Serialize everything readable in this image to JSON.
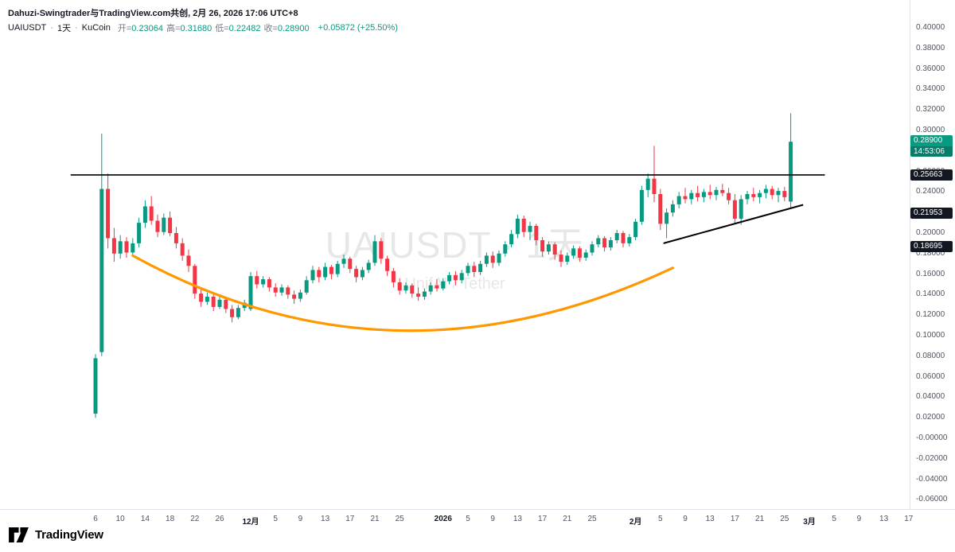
{
  "attribution": "Dahuzi-Swingtrader与TradingView.com共创, 2月 26, 2026 17:06 UTC+8",
  "header": {
    "symbol": "UAIUSDT",
    "separator": "·",
    "interval": "1天",
    "exchange": "KuCoin",
    "ohlc": [
      {
        "label": "开",
        "value": "0.23064"
      },
      {
        "label": "高",
        "value": "0.31680"
      },
      {
        "label": "低",
        "value": "0.22482"
      },
      {
        "label": "收",
        "value": "0.28900"
      }
    ],
    "change": "+0.05872 (+25.50%)"
  },
  "watermark": {
    "line1": "UAIUSDT · 1天",
    "line2": "UnifAI / Tether"
  },
  "colors": {
    "up": "#089981",
    "down": "#f23645",
    "level_line": "#000000",
    "curve": "#ff9800",
    "badge_dark": "#131722",
    "current_badge": "#089981"
  },
  "price_axis": {
    "labels": [
      "0.40000",
      "0.38000",
      "0.36000",
      "0.34000",
      "0.32000",
      "0.30000",
      "0.28000",
      "0.26000",
      "0.24000",
      "0.22000",
      "0.20000",
      "0.18000",
      "0.16000",
      "0.14000",
      "0.12000",
      "0.10000",
      "0.08000",
      "0.06000",
      "0.04000",
      "0.02000",
      "-0.00000",
      "-0.02000",
      "-0.04000",
      "-0.06000"
    ]
  },
  "badges": [
    {
      "text": "0.28900",
      "sub": "14:53:06",
      "price": 0.289,
      "type": "current"
    },
    {
      "text": "0.25663",
      "price": 0.25663,
      "type": "level"
    },
    {
      "text": "0.21953",
      "price": 0.21953,
      "type": "level"
    },
    {
      "text": "0.18695",
      "price": 0.18695,
      "type": "level"
    }
  ],
  "time_axis": [
    {
      "label": "6",
      "day": 0
    },
    {
      "label": "10",
      "day": 4
    },
    {
      "label": "14",
      "day": 8
    },
    {
      "label": "18",
      "day": 12
    },
    {
      "label": "22",
      "day": 16
    },
    {
      "label": "26",
      "day": 20
    },
    {
      "label": "12月",
      "day": 25,
      "bold": true
    },
    {
      "label": "5",
      "day": 29
    },
    {
      "label": "9",
      "day": 33
    },
    {
      "label": "13",
      "day": 37
    },
    {
      "label": "17",
      "day": 41
    },
    {
      "label": "21",
      "day": 45
    },
    {
      "label": "25",
      "day": 49
    },
    {
      "label": "2026",
      "day": 56,
      "bold": true
    },
    {
      "label": "5",
      "day": 60
    },
    {
      "label": "9",
      "day": 64
    },
    {
      "label": "13",
      "day": 68
    },
    {
      "label": "17",
      "day": 72
    },
    {
      "label": "21",
      "day": 76
    },
    {
      "label": "25",
      "day": 80
    },
    {
      "label": "2月",
      "day": 87,
      "bold": true
    },
    {
      "label": "5",
      "day": 91
    },
    {
      "label": "9",
      "day": 95
    },
    {
      "label": "13",
      "day": 99
    },
    {
      "label": "17",
      "day": 103
    },
    {
      "label": "21",
      "day": 107
    },
    {
      "label": "25",
      "day": 111
    },
    {
      "label": "3月",
      "day": 115,
      "bold": true
    },
    {
      "label": "5",
      "day": 119
    },
    {
      "label": "9",
      "day": 123
    },
    {
      "label": "13",
      "day": 127
    },
    {
      "label": "17",
      "day": 131
    }
  ],
  "logo": {
    "text": "TradingView"
  },
  "chart_data": {
    "type": "candlestick",
    "title": "UAIUSDT 1D KuCoin",
    "symbol": "UAIUSDT",
    "interval": "1D",
    "exchange": "KuCoin",
    "start_date": "2025-11-06",
    "end_date": "2026-02-26",
    "visible_price_range": [
      -0.065,
      0.405
    ],
    "grid": false,
    "last_candle": {
      "open": 0.23064,
      "high": 0.3168,
      "low": 0.22482,
      "close": 0.289,
      "change": "+0.05872 (+25.50%)"
    },
    "ohlc": [
      [
        0.024,
        0.082,
        0.02,
        0.078
      ],
      [
        0.084,
        0.297,
        0.08,
        0.243
      ],
      [
        0.243,
        0.258,
        0.185,
        0.195
      ],
      [
        0.195,
        0.205,
        0.172,
        0.18
      ],
      [
        0.18,
        0.198,
        0.175,
        0.192
      ],
      [
        0.192,
        0.196,
        0.176,
        0.181
      ],
      [
        0.181,
        0.195,
        0.178,
        0.19
      ],
      [
        0.19,
        0.215,
        0.186,
        0.21
      ],
      [
        0.21,
        0.232,
        0.205,
        0.226
      ],
      [
        0.226,
        0.236,
        0.208,
        0.212
      ],
      [
        0.212,
        0.218,
        0.196,
        0.201
      ],
      [
        0.201,
        0.219,
        0.198,
        0.215
      ],
      [
        0.215,
        0.221,
        0.197,
        0.2
      ],
      [
        0.2,
        0.206,
        0.185,
        0.19
      ],
      [
        0.19,
        0.195,
        0.173,
        0.178
      ],
      [
        0.178,
        0.184,
        0.162,
        0.168
      ],
      [
        0.168,
        0.17,
        0.136,
        0.141
      ],
      [
        0.141,
        0.146,
        0.128,
        0.133
      ],
      [
        0.133,
        0.142,
        0.13,
        0.138
      ],
      [
        0.138,
        0.14,
        0.124,
        0.128
      ],
      [
        0.128,
        0.138,
        0.126,
        0.135
      ],
      [
        0.135,
        0.137,
        0.122,
        0.126
      ],
      [
        0.126,
        0.13,
        0.113,
        0.118
      ],
      [
        0.118,
        0.13,
        0.116,
        0.127
      ],
      [
        0.127,
        0.135,
        0.124,
        0.132
      ],
      [
        0.126,
        0.162,
        0.124,
        0.158
      ],
      [
        0.158,
        0.163,
        0.146,
        0.15
      ],
      [
        0.15,
        0.158,
        0.147,
        0.155
      ],
      [
        0.155,
        0.157,
        0.143,
        0.147
      ],
      [
        0.147,
        0.151,
        0.138,
        0.142
      ],
      [
        0.142,
        0.15,
        0.139,
        0.147
      ],
      [
        0.147,
        0.149,
        0.136,
        0.14
      ],
      [
        0.14,
        0.144,
        0.131,
        0.136
      ],
      [
        0.136,
        0.145,
        0.133,
        0.142
      ],
      [
        0.142,
        0.158,
        0.14,
        0.154
      ],
      [
        0.154,
        0.168,
        0.151,
        0.164
      ],
      [
        0.164,
        0.167,
        0.152,
        0.157
      ],
      [
        0.157,
        0.171,
        0.154,
        0.167
      ],
      [
        0.167,
        0.169,
        0.155,
        0.16
      ],
      [
        0.16,
        0.173,
        0.157,
        0.17
      ],
      [
        0.17,
        0.179,
        0.166,
        0.175
      ],
      [
        0.175,
        0.177,
        0.161,
        0.165
      ],
      [
        0.165,
        0.168,
        0.152,
        0.157
      ],
      [
        0.157,
        0.167,
        0.154,
        0.164
      ],
      [
        0.164,
        0.174,
        0.161,
        0.171
      ],
      [
        0.171,
        0.198,
        0.168,
        0.192
      ],
      [
        0.192,
        0.195,
        0.17,
        0.175
      ],
      [
        0.175,
        0.178,
        0.158,
        0.163
      ],
      [
        0.163,
        0.166,
        0.147,
        0.152
      ],
      [
        0.152,
        0.156,
        0.14,
        0.144
      ],
      [
        0.144,
        0.152,
        0.141,
        0.149
      ],
      [
        0.149,
        0.151,
        0.137,
        0.141
      ],
      [
        0.141,
        0.147,
        0.134,
        0.138
      ],
      [
        0.138,
        0.146,
        0.135,
        0.143
      ],
      [
        0.143,
        0.152,
        0.14,
        0.149
      ],
      [
        0.149,
        0.155,
        0.143,
        0.146
      ],
      [
        0.146,
        0.156,
        0.144,
        0.153
      ],
      [
        0.153,
        0.162,
        0.15,
        0.159
      ],
      [
        0.159,
        0.163,
        0.149,
        0.154
      ],
      [
        0.154,
        0.164,
        0.151,
        0.161
      ],
      [
        0.161,
        0.171,
        0.158,
        0.168
      ],
      [
        0.168,
        0.172,
        0.157,
        0.162
      ],
      [
        0.162,
        0.173,
        0.159,
        0.17
      ],
      [
        0.17,
        0.181,
        0.167,
        0.178
      ],
      [
        0.178,
        0.182,
        0.166,
        0.171
      ],
      [
        0.171,
        0.183,
        0.168,
        0.18
      ],
      [
        0.18,
        0.192,
        0.177,
        0.189
      ],
      [
        0.189,
        0.203,
        0.186,
        0.199
      ],
      [
        0.199,
        0.218,
        0.195,
        0.214
      ],
      [
        0.214,
        0.217,
        0.196,
        0.201
      ],
      [
        0.201,
        0.211,
        0.193,
        0.207
      ],
      [
        0.207,
        0.209,
        0.188,
        0.193
      ],
      [
        0.193,
        0.196,
        0.177,
        0.182
      ],
      [
        0.182,
        0.192,
        0.179,
        0.189
      ],
      [
        0.189,
        0.191,
        0.174,
        0.179
      ],
      [
        0.179,
        0.183,
        0.167,
        0.172
      ],
      [
        0.172,
        0.181,
        0.169,
        0.178
      ],
      [
        0.178,
        0.188,
        0.175,
        0.185
      ],
      [
        0.185,
        0.187,
        0.172,
        0.176
      ],
      [
        0.176,
        0.184,
        0.173,
        0.181
      ],
      [
        0.181,
        0.192,
        0.178,
        0.189
      ],
      [
        0.189,
        0.198,
        0.186,
        0.195
      ],
      [
        0.195,
        0.197,
        0.182,
        0.186
      ],
      [
        0.186,
        0.196,
        0.183,
        0.193
      ],
      [
        0.193,
        0.203,
        0.19,
        0.2
      ],
      [
        0.2,
        0.202,
        0.186,
        0.19
      ],
      [
        0.19,
        0.199,
        0.187,
        0.196
      ],
      [
        0.196,
        0.214,
        0.193,
        0.211
      ],
      [
        0.211,
        0.246,
        0.208,
        0.242
      ],
      [
        0.242,
        0.258,
        0.235,
        0.253
      ],
      [
        0.253,
        0.285,
        0.23,
        0.238
      ],
      [
        0.238,
        0.243,
        0.203,
        0.209
      ],
      [
        0.209,
        0.224,
        0.195,
        0.22
      ],
      [
        0.22,
        0.232,
        0.216,
        0.228
      ],
      [
        0.228,
        0.24,
        0.224,
        0.236
      ],
      [
        0.236,
        0.244,
        0.229,
        0.233
      ],
      [
        0.233,
        0.242,
        0.228,
        0.239
      ],
      [
        0.239,
        0.246,
        0.231,
        0.235
      ],
      [
        0.235,
        0.243,
        0.23,
        0.24
      ],
      [
        0.24,
        0.247,
        0.233,
        0.237
      ],
      [
        0.237,
        0.245,
        0.232,
        0.242
      ],
      [
        0.242,
        0.248,
        0.236,
        0.239
      ],
      [
        0.239,
        0.244,
        0.228,
        0.232
      ],
      [
        0.232,
        0.238,
        0.21,
        0.214
      ],
      [
        0.214,
        0.237,
        0.208,
        0.233
      ],
      [
        0.233,
        0.241,
        0.228,
        0.238
      ],
      [
        0.238,
        0.244,
        0.231,
        0.235
      ],
      [
        0.235,
        0.242,
        0.229,
        0.239
      ],
      [
        0.239,
        0.247,
        0.234,
        0.243
      ],
      [
        0.243,
        0.246,
        0.233,
        0.237
      ],
      [
        0.237,
        0.244,
        0.23,
        0.241
      ],
      [
        0.241,
        0.245,
        0.231,
        0.235
      ],
      [
        0.23064,
        0.3168,
        0.22482,
        0.289
      ]
    ],
    "drawings": [
      {
        "type": "horizontal_line",
        "price": 0.25663,
        "from_day": -4,
        "to_day": 117.5,
        "color": "#000000"
      },
      {
        "type": "curve",
        "from": {
          "day": 6,
          "price": 0.178
        },
        "control": {
          "day": 48,
          "price": 0.038
        },
        "to": {
          "day": 93,
          "price": 0.166
        },
        "color": "#ff9800",
        "note": "rounding-bottom"
      },
      {
        "type": "trend_line",
        "from": {
          "day": 91.5,
          "price": 0.19
        },
        "to": {
          "day": 114,
          "price": 0.2275
        },
        "color": "#000000"
      }
    ]
  }
}
